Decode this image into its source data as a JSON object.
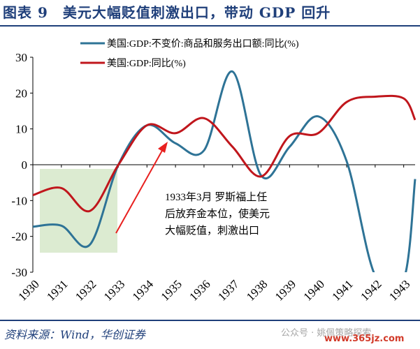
{
  "header": {
    "title": "图表 9　美元大幅贬值刺激出口，带动 GDP 回升"
  },
  "footer": {
    "source": "资料来源：Wind，华创证券",
    "watermark": "公众号 · 姚佩策略探索",
    "site": "www.365jz.com"
  },
  "annotation": {
    "lines": [
      "1933年3月 罗斯福上任",
      "后放弃金本位，使美元",
      "大幅贬值，刺激出口"
    ]
  },
  "colors": {
    "export_series": "#2e7396",
    "gdp_series": "#c0161c",
    "highlight_fill": "#dcebd1",
    "arrow": "#e8201f",
    "title": "#1f3f7a"
  },
  "chart_data": {
    "type": "line",
    "x_labels": [
      "1930",
      "1931",
      "1932",
      "1933",
      "1934",
      "1935",
      "1936",
      "1937",
      "1938",
      "1939",
      "1940",
      "1941",
      "1942",
      "1943"
    ],
    "ylim": [
      -30,
      30
    ],
    "yticks": [
      "30",
      "20",
      "10",
      "0",
      "-10",
      "-20",
      "-30"
    ],
    "legend_position": "top",
    "grid": false,
    "series": [
      {
        "name": "美国:GDP:不变价:商品和服务出口额:同比(%)",
        "color": "#2e7396",
        "x": [
          1930,
          1931,
          1932,
          1933,
          1934,
          1935,
          1936,
          1937,
          1938,
          1939,
          1940,
          1941,
          1942,
          1943,
          1943.4
        ],
        "values": [
          -17.3,
          -17,
          -22.3,
          0,
          11,
          6,
          4,
          26,
          -3,
          5,
          13.5,
          1,
          -31,
          -32,
          -4
        ]
      },
      {
        "name": "美国:GDP:同比(%)",
        "color": "#c0161c",
        "x": [
          1930,
          1931,
          1932,
          1933,
          1934,
          1935,
          1936,
          1937,
          1938,
          1939,
          1940,
          1941,
          1942,
          1943,
          1943.4
        ],
        "values": [
          -8.5,
          -6.5,
          -12.9,
          0,
          11,
          8.8,
          13,
          5,
          -3.3,
          8,
          8.8,
          17.5,
          19,
          18.5,
          12.5
        ]
      }
    ]
  }
}
